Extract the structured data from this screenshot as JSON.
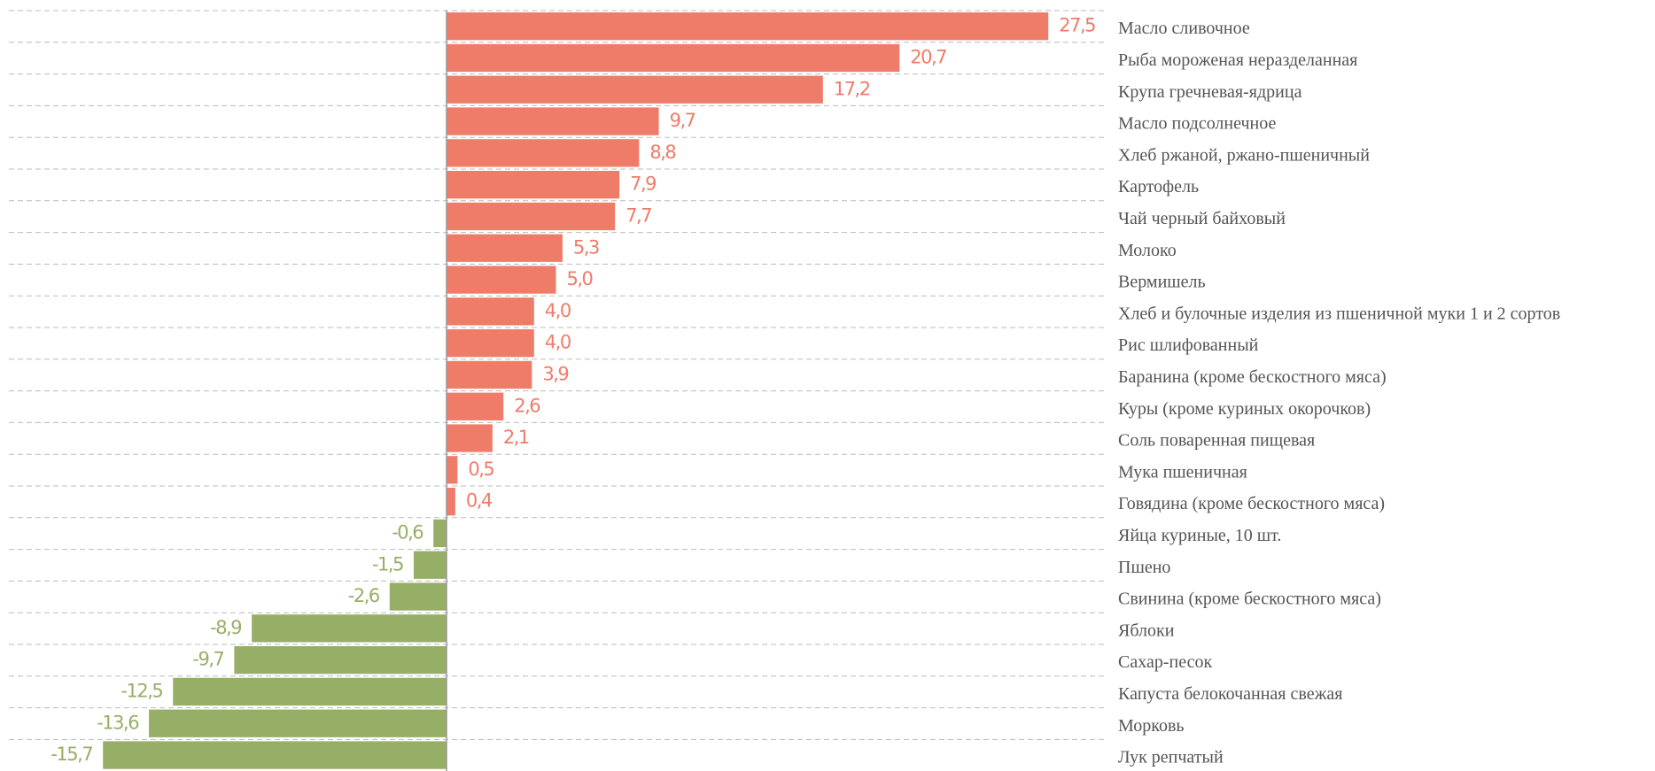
{
  "chart_data": {
    "type": "bar",
    "orientation": "horizontal",
    "categories": [
      "Масло сливочное",
      "Рыба мороженая неразделанная",
      "Крупа гречневая-ядрица",
      "Масло подсолнечное",
      "Хлеб ржаной, ржано-пшеничный",
      "Картофель",
      "Чай черный байховый",
      "Молоко",
      "Вермишель",
      "Хлеб и булочные изделия из пшеничной муки 1 и 2 сортов",
      "Рис шлифованный",
      "Баранина (кроме бескостного мяса)",
      "Куры (кроме куриных окорочков)",
      "Соль поваренная пищевая",
      "Мука пшеничная",
      "Говядина (кроме бескостного мяса)",
      "Яйца куриные, 10 шт.",
      "Пшено",
      "Свинина (кроме бескостного мяса)",
      "Яблоки",
      "Сахар-песок",
      "Капуста белокочанная свежая",
      "Морковь",
      "Лук репчатый"
    ],
    "values": [
      27.5,
      20.7,
      17.2,
      9.7,
      8.8,
      7.9,
      7.7,
      5.3,
      5.0,
      4.0,
      4.0,
      3.9,
      2.6,
      2.1,
      0.5,
      0.4,
      -0.6,
      -1.5,
      -2.6,
      -8.9,
      -9.7,
      -12.5,
      -13.6,
      -15.7
    ],
    "value_labels": [
      "27,5",
      "20,7",
      "17,2",
      "9,7",
      "8,8",
      "7,9",
      "7,7",
      "5,3",
      "5,0",
      "4,0",
      "4,0",
      "3,9",
      "2,6",
      "2,1",
      "0,5",
      "0,4",
      "-0,6",
      "-1,5",
      "-2,6",
      "-8,9",
      "-9,7",
      "-12,5",
      "-13,6",
      "-15,7"
    ],
    "positive_color": "#ef7b69",
    "negative_color": "#97ae67",
    "xlim": [
      -20,
      30
    ],
    "grid": true
  }
}
